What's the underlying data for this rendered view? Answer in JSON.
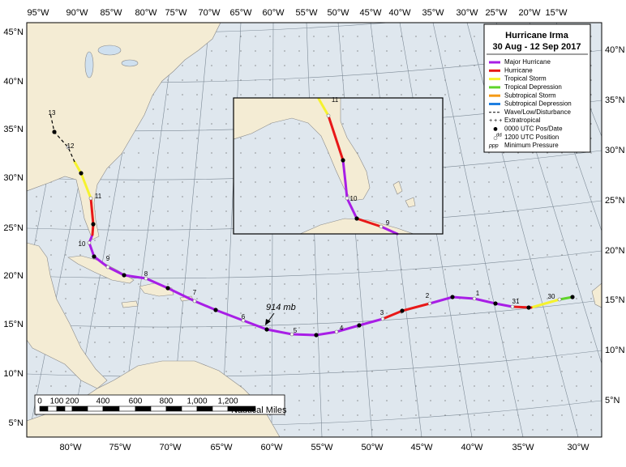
{
  "map": {
    "title": "Hurricane Irma",
    "subtitle": "30 Aug - 12 Sep 2017",
    "legend": [
      {
        "label": "Major Hurricane",
        "color": "#a81ee6"
      },
      {
        "label": "Hurricane",
        "color": "#e81818"
      },
      {
        "label": "Tropical Storm",
        "color": "#f5f22e"
      },
      {
        "label": "Tropical Depression",
        "color": "#5fd42a"
      },
      {
        "label": "Subtropical Storm",
        "color": "#f59a16"
      },
      {
        "label": "Subtropical Depression",
        "color": "#1f7fe0"
      },
      {
        "label": "Wave/Low/Disturbance",
        "color": "#000000"
      },
      {
        "label": "Extratropical",
        "symbol": "+ + +"
      },
      {
        "label": "0000 UTC Pos/Date"
      },
      {
        "label": "1200 UTC Position",
        "symbol": "dd"
      },
      {
        "label": "Minimum Pressure",
        "symbol": "ppp"
      }
    ],
    "lon_labels_top": [
      "95°W",
      "90°W",
      "85°W",
      "80°W",
      "75°W",
      "70°W",
      "65°W",
      "60°W",
      "55°W",
      "50°W",
      "45°W",
      "40°W",
      "35°W",
      "30°W",
      "25°W",
      "20°W",
      "15°W"
    ],
    "lon_labels_bottom": [
      "80°W",
      "75°W",
      "70°W",
      "65°W",
      "60°W",
      "55°W",
      "50°W",
      "45°W",
      "40°W",
      "35°W",
      "30°W"
    ],
    "lat_labels_left": [
      "45°N",
      "40°N",
      "35°N",
      "30°N",
      "25°N",
      "20°N",
      "15°N",
      "10°N",
      "5°N"
    ],
    "lat_labels_right": [
      "40°N",
      "35°N",
      "30°N",
      "25°N",
      "20°N",
      "15°N",
      "10°N",
      "5°N"
    ],
    "track_labels": [
      "30",
      "31",
      "1",
      "2",
      "3",
      "4",
      "5",
      "6",
      "7",
      "8",
      "9",
      "10",
      "11",
      "12",
      "13"
    ],
    "inset_track_labels": [
      "11",
      "10",
      "9"
    ],
    "annotation": "914 mb",
    "scale": {
      "labels": [
        "0",
        "100",
        "200",
        "400",
        "600",
        "800",
        "1,000",
        "1,200"
      ],
      "unit": "Nautical Miles"
    }
  }
}
